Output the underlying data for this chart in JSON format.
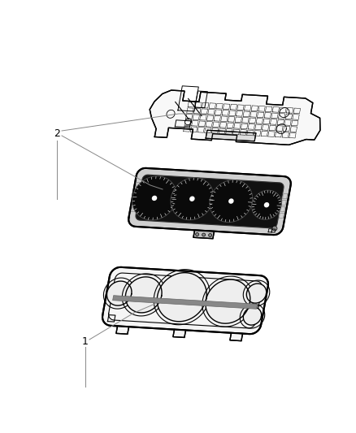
{
  "background_color": "#ffffff",
  "line_color": "#000000",
  "label_1": "1",
  "label_2": "2",
  "fig_width": 4.38,
  "fig_height": 5.33,
  "dpi": 100
}
